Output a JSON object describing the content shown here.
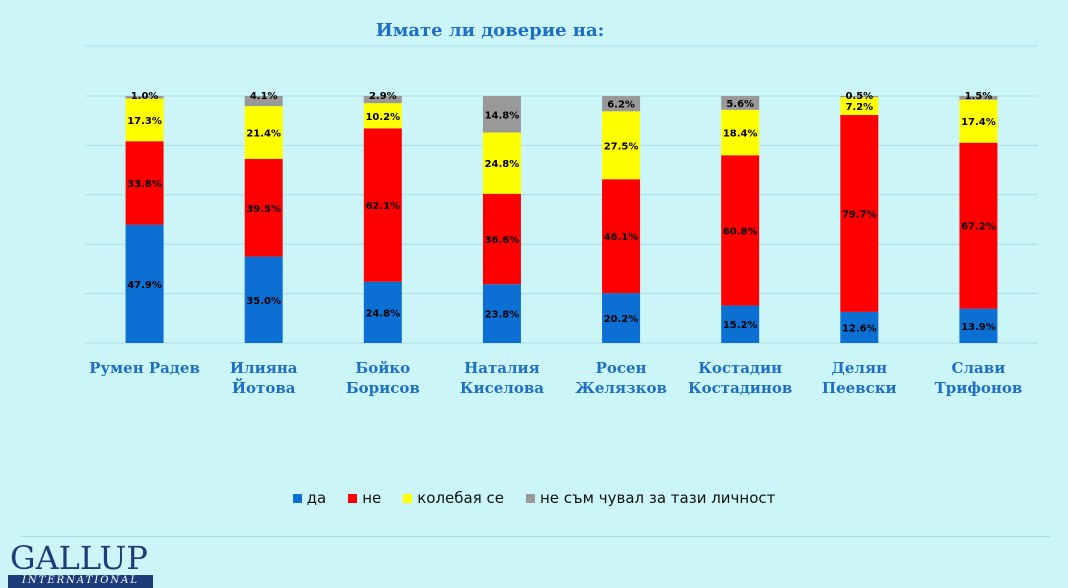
{
  "chart_data": {
    "type": "bar",
    "stacked": true,
    "title": "Имате  ли доверие на:",
    "categories": [
      [
        "Румен Радев"
      ],
      [
        "Илияна",
        "Йотова"
      ],
      [
        "Бойко",
        "Борисов"
      ],
      [
        "Наталия",
        "Киселова"
      ],
      [
        "Росен",
        "Желязков"
      ],
      [
        "Костадин",
        "Костадинов"
      ],
      [
        "Делян",
        "Пеевски"
      ],
      [
        "Слави",
        "Трифонов"
      ]
    ],
    "series": [
      {
        "name": "да",
        "color": "#0b6fd4",
        "values": [
          47.9,
          35.0,
          24.8,
          23.8,
          20.2,
          15.2,
          12.6,
          13.9
        ]
      },
      {
        "name": "не",
        "color": "#ff0000",
        "values": [
          33.8,
          39.5,
          62.1,
          36.6,
          46.1,
          60.8,
          79.7,
          67.2
        ]
      },
      {
        "name": "колебая се",
        "color": "#ffff00",
        "values": [
          17.3,
          21.4,
          10.2,
          24.8,
          27.5,
          18.4,
          7.2,
          17.4
        ]
      },
      {
        "name": "не съм чувал за тази личност",
        "color": "#999999",
        "values": [
          1.0,
          4.1,
          2.9,
          14.8,
          6.2,
          5.6,
          0.5,
          1.5
        ]
      }
    ],
    "ylim": [
      0,
      100
    ],
    "grid": true,
    "legend_position": "bottom",
    "label_format": "%"
  },
  "brand": {
    "logo_main": "GALLUP",
    "logo_sub": "INTERNATIONAL"
  }
}
